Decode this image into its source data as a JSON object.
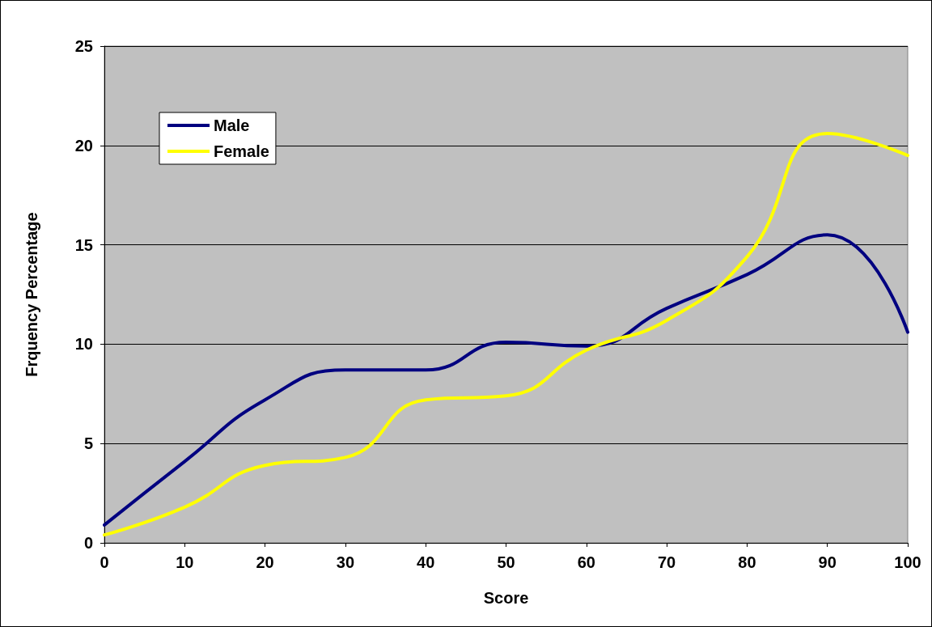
{
  "chart_data": {
    "type": "line",
    "xlabel": "Score",
    "ylabel": "Frquency Percentage",
    "x": [
      0,
      10,
      20,
      30,
      40,
      50,
      60,
      70,
      80,
      90,
      100
    ],
    "series": [
      {
        "name": "Male",
        "color": "#000080",
        "values": [
          0.9,
          4.1,
          7.2,
          8.7,
          8.7,
          10.1,
          9.9,
          11.8,
          13.5,
          15.5,
          10.6
        ]
      },
      {
        "name": "Female",
        "color": "#ffff00",
        "values": [
          0.4,
          1.8,
          3.9,
          4.3,
          7.2,
          7.4,
          9.7,
          11.2,
          14.4,
          20.6,
          19.5
        ]
      }
    ],
    "xlim": [
      0,
      100
    ],
    "xticks": [
      0,
      10,
      20,
      30,
      40,
      50,
      60,
      70,
      80,
      90,
      100
    ],
    "ylim": [
      0,
      25
    ],
    "yticks": [
      0,
      5,
      10,
      15,
      20,
      25
    ],
    "grid": "y",
    "legend": "top left",
    "marker": "none",
    "line_style": "solid"
  }
}
